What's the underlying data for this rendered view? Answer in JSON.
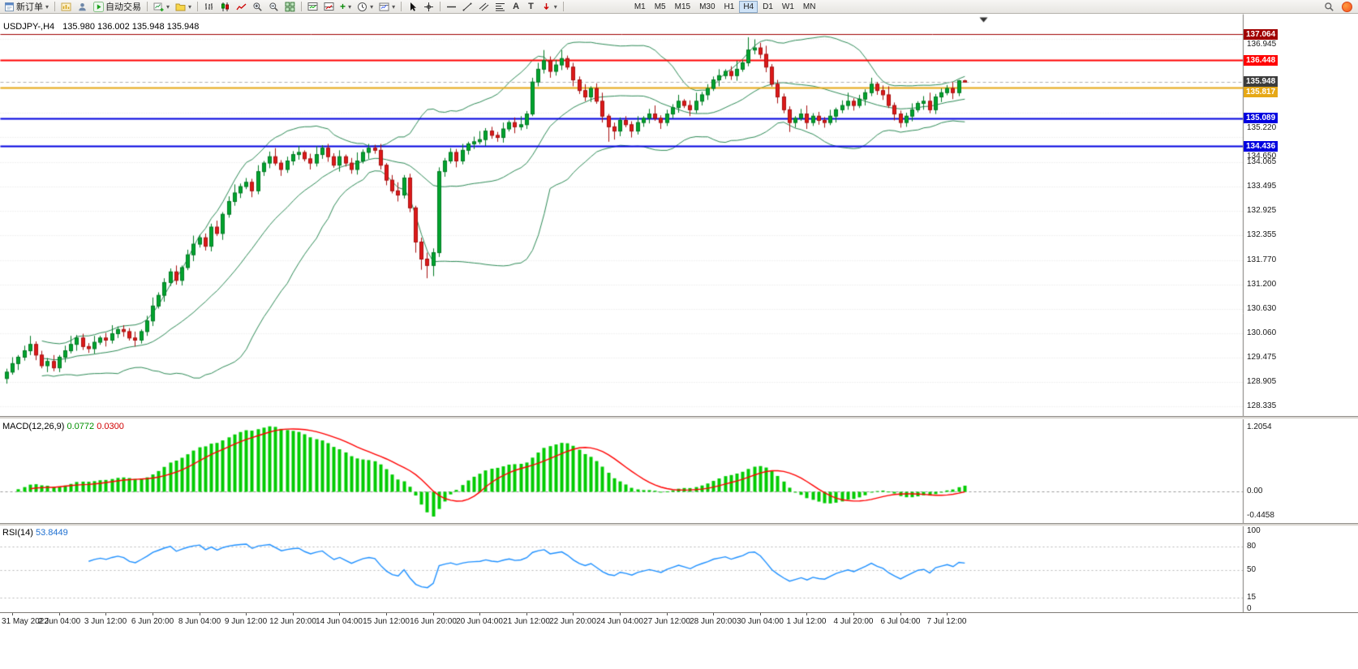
{
  "toolbar": {
    "new_order_label": "新订单",
    "auto_trading_label": "自动交易",
    "text_tool": "A",
    "label_tool": "T",
    "timeframes": [
      "M1",
      "M5",
      "M15",
      "M30",
      "H1",
      "H4",
      "D1",
      "W1",
      "MN"
    ],
    "active_timeframe": "H4"
  },
  "chart_header": {
    "symbol_period": "USDJPY-,H4",
    "ohlc": "135.980 136.002 135.948 135.948"
  },
  "price_axis": {
    "labels": [
      136.945,
      135.22,
      134.65,
      134.065,
      133.495,
      132.925,
      132.355,
      131.77,
      131.2,
      130.63,
      130.06,
      129.475,
      128.905,
      128.335
    ],
    "tags": [
      {
        "text": "137.064",
        "price": 137.064,
        "bg": "#a00000"
      },
      {
        "text": "136.448",
        "price": 136.448,
        "bg": "#ff0000"
      },
      {
        "text": "135.948",
        "price": 135.948,
        "bg": "#3c3c3c"
      },
      {
        "text": "135.817",
        "price": 135.817,
        "bg": "#e6a817"
      },
      {
        "text": "135.089",
        "price": 135.089,
        "bg": "#0000e0"
      },
      {
        "text": "134.436",
        "price": 134.436,
        "bg": "#0000e0"
      }
    ]
  },
  "chart_data": {
    "type": "candlestick",
    "symbol": "USDJPY-",
    "timeframe": "H4",
    "ylim": [
      128.15,
      137.35
    ],
    "colors": {
      "up": "#00a32e",
      "up_dark": "#007a22",
      "down": "#dd1a1a",
      "down_dark": "#a80f0f"
    },
    "bollinger": {
      "period": 20,
      "deviation": 2,
      "color": "#2e8b57"
    },
    "hlines": [
      {
        "price": 137.064,
        "color": "#a00000",
        "width": 1
      },
      {
        "price": 136.448,
        "color": "#ff0000",
        "width": 2
      },
      {
        "price": 135.817,
        "color": "#e6a817",
        "width": 2
      },
      {
        "price": 135.089,
        "color": "#0000e0",
        "width": 2
      },
      {
        "price": 134.436,
        "color": "#0000e0",
        "width": 2
      }
    ],
    "bid_line": {
      "price": 135.948,
      "color": "#b0b0b0"
    },
    "x_label_first_candle": 1,
    "x_label_step": 8,
    "x_labels": [
      "31 May 2022",
      "2 Jun 04:00",
      "3 Jun 12:00",
      "6 Jun 20:00",
      "8 Jun 04:00",
      "9 Jun 12:00",
      "12 Jun 20:00",
      "14 Jun 04:00",
      "15 Jun 12:00",
      "16 Jun 20:00",
      "20 Jun 04:00",
      "21 Jun 12:00",
      "22 Jun 20:00",
      "24 Jun 04:00",
      "27 Jun 12:00",
      "28 Jun 20:00",
      "30 Jun 04:00",
      "1 Jul 12:00",
      "4 Jul 20:00",
      "6 Jul 04:00",
      "7 Jul 12:00"
    ],
    "indicators": {
      "macd": {
        "label": "MACD(12,26,9)",
        "value_main": "0.0772",
        "value_signal": "0.0300",
        "axis_labels": [
          "1.2054",
          "0.00",
          "-0.4458"
        ],
        "histogram_color": "#00cc00",
        "signal_color": "#ff0000"
      },
      "rsi": {
        "label": "RSI(14)",
        "value": "53.8449",
        "axis_labels": [
          "100",
          "80",
          "50",
          "15",
          "0"
        ],
        "axis_values": [
          100,
          80,
          50,
          15,
          0
        ],
        "levels": [
          80,
          50,
          15
        ],
        "line_color": "#1e90ff"
      }
    },
    "candles": [
      [
        129.0,
        129.23,
        128.88,
        129.15
      ],
      [
        129.15,
        129.5,
        129.09,
        129.35
      ],
      [
        129.35,
        129.55,
        129.2,
        129.5
      ],
      [
        129.5,
        129.77,
        129.42,
        129.65
      ],
      [
        129.65,
        130.0,
        129.55,
        129.8
      ],
      [
        129.8,
        129.87,
        129.43,
        129.55
      ],
      [
        129.55,
        129.65,
        129.24,
        129.3
      ],
      [
        129.3,
        129.48,
        129.15,
        129.4
      ],
      [
        129.4,
        129.55,
        129.17,
        129.25
      ],
      [
        129.25,
        129.55,
        129.15,
        129.5
      ],
      [
        129.5,
        129.77,
        129.38,
        129.65
      ],
      [
        129.65,
        130.0,
        129.59,
        129.8
      ],
      [
        129.8,
        130.02,
        129.65,
        129.95
      ],
      [
        129.95,
        130.05,
        129.67,
        129.75
      ],
      [
        129.75,
        129.83,
        129.6,
        129.7
      ],
      [
        129.7,
        130.0,
        129.58,
        129.85
      ],
      [
        129.85,
        130.0,
        129.79,
        129.95
      ],
      [
        129.95,
        130.07,
        129.75,
        129.9
      ],
      [
        129.9,
        130.25,
        129.82,
        130.05
      ],
      [
        130.05,
        130.22,
        129.95,
        130.15
      ],
      [
        130.15,
        130.25,
        129.98,
        130.1
      ],
      [
        130.1,
        130.18,
        129.89,
        129.95
      ],
      [
        129.95,
        130.1,
        129.75,
        129.9
      ],
      [
        129.9,
        130.15,
        129.82,
        130.1
      ],
      [
        130.1,
        130.47,
        130.0,
        130.35
      ],
      [
        130.35,
        130.9,
        130.23,
        130.7
      ],
      [
        130.7,
        131.02,
        130.64,
        130.95
      ],
      [
        130.95,
        131.35,
        130.8,
        131.25
      ],
      [
        131.25,
        131.58,
        131.17,
        131.5
      ],
      [
        131.5,
        131.65,
        131.2,
        131.3
      ],
      [
        131.3,
        131.65,
        131.18,
        131.6
      ],
      [
        131.6,
        132.02,
        131.54,
        131.9
      ],
      [
        131.9,
        132.35,
        131.75,
        132.15
      ],
      [
        132.15,
        132.37,
        132.07,
        132.3
      ],
      [
        132.3,
        132.4,
        132.0,
        132.1
      ],
      [
        132.1,
        132.63,
        131.98,
        132.55
      ],
      [
        132.55,
        132.7,
        132.34,
        132.4
      ],
      [
        132.4,
        132.9,
        132.25,
        132.85
      ],
      [
        132.85,
        133.27,
        132.77,
        133.15
      ],
      [
        133.15,
        133.55,
        133.05,
        133.35
      ],
      [
        133.35,
        133.57,
        133.23,
        133.5
      ],
      [
        133.5,
        133.7,
        133.44,
        133.6
      ],
      [
        133.6,
        133.68,
        133.25,
        133.4
      ],
      [
        133.4,
        134.0,
        133.32,
        133.85
      ],
      [
        133.85,
        134.1,
        133.75,
        134.05
      ],
      [
        134.05,
        134.32,
        133.93,
        134.2
      ],
      [
        134.2,
        134.4,
        133.99,
        134.05
      ],
      [
        134.05,
        134.12,
        133.75,
        133.9
      ],
      [
        133.9,
        134.2,
        133.82,
        134.1
      ],
      [
        134.1,
        134.33,
        134.0,
        134.25
      ],
      [
        134.25,
        134.45,
        134.13,
        134.3
      ],
      [
        134.3,
        134.35,
        134.09,
        134.15
      ],
      [
        134.15,
        134.27,
        133.9,
        134.05
      ],
      [
        134.05,
        134.45,
        133.97,
        134.25
      ],
      [
        134.25,
        134.47,
        134.15,
        134.4
      ],
      [
        134.4,
        134.5,
        134.08,
        134.2
      ],
      [
        134.2,
        134.28,
        133.94,
        134.0
      ],
      [
        134.0,
        134.35,
        133.85,
        134.2
      ],
      [
        134.2,
        134.25,
        133.97,
        134.05
      ],
      [
        134.05,
        134.17,
        133.8,
        133.9
      ],
      [
        133.9,
        134.3,
        133.78,
        134.1
      ],
      [
        134.1,
        134.37,
        134.04,
        134.3
      ],
      [
        134.3,
        134.5,
        134.15,
        134.4
      ],
      [
        134.4,
        134.48,
        134.27,
        134.35
      ],
      [
        134.35,
        134.5,
        133.9,
        134.0
      ],
      [
        134.0,
        134.05,
        133.53,
        133.65
      ],
      [
        133.65,
        133.77,
        133.34,
        133.4
      ],
      [
        133.4,
        133.6,
        133.15,
        133.3
      ],
      [
        133.3,
        133.77,
        133.22,
        133.7
      ],
      [
        133.7,
        133.8,
        132.9,
        133.0
      ],
      [
        133.0,
        133.05,
        131.95,
        132.2
      ],
      [
        132.2,
        132.3,
        131.55,
        131.8
      ],
      [
        131.8,
        131.95,
        131.35,
        131.65
      ],
      [
        131.65,
        132.05,
        131.4,
        131.95
      ],
      [
        131.95,
        133.95,
        131.85,
        133.85
      ],
      [
        133.85,
        134.17,
        133.73,
        134.1
      ],
      [
        134.1,
        134.4,
        134.04,
        134.3
      ],
      [
        134.3,
        134.38,
        133.95,
        134.1
      ],
      [
        134.1,
        134.5,
        134.02,
        134.35
      ],
      [
        134.35,
        134.55,
        134.25,
        134.5
      ],
      [
        134.5,
        134.67,
        134.38,
        134.55
      ],
      [
        134.55,
        134.8,
        134.49,
        134.6
      ],
      [
        134.6,
        134.87,
        134.45,
        134.8
      ],
      [
        134.8,
        134.9,
        134.62,
        134.7
      ],
      [
        134.7,
        134.78,
        134.55,
        134.65
      ],
      [
        134.65,
        135.0,
        134.53,
        134.85
      ],
      [
        134.85,
        135.05,
        134.79,
        135.0
      ],
      [
        135.0,
        135.12,
        134.75,
        134.9
      ],
      [
        134.9,
        135.15,
        134.82,
        134.95
      ],
      [
        134.95,
        135.27,
        134.85,
        135.2
      ],
      [
        135.2,
        136.05,
        135.15,
        135.95
      ],
      [
        135.95,
        136.4,
        135.85,
        136.25
      ],
      [
        136.25,
        136.7,
        136.15,
        136.45
      ],
      [
        136.45,
        136.55,
        136.05,
        136.2
      ],
      [
        136.2,
        136.47,
        136.1,
        136.35
      ],
      [
        136.35,
        136.7,
        136.23,
        136.5
      ],
      [
        136.5,
        136.57,
        136.24,
        136.3
      ],
      [
        136.3,
        136.4,
        135.85,
        136.0
      ],
      [
        136.0,
        136.08,
        135.67,
        135.75
      ],
      [
        135.75,
        135.9,
        135.5,
        135.6
      ],
      [
        135.6,
        135.85,
        135.48,
        135.8
      ],
      [
        135.8,
        135.92,
        135.44,
        135.5
      ],
      [
        135.5,
        135.7,
        135.0,
        135.15
      ],
      [
        135.15,
        135.2,
        134.55,
        134.9
      ],
      [
        134.9,
        135.0,
        134.6,
        134.8
      ],
      [
        134.8,
        135.12,
        134.68,
        135.05
      ],
      [
        135.05,
        135.15,
        134.89,
        134.95
      ],
      [
        134.95,
        135.03,
        134.65,
        134.8
      ],
      [
        134.8,
        135.15,
        134.72,
        135.0
      ],
      [
        135.0,
        135.15,
        134.9,
        135.1
      ],
      [
        135.1,
        135.32,
        134.98,
        135.2
      ],
      [
        135.2,
        135.4,
        135.04,
        135.1
      ],
      [
        135.1,
        135.17,
        134.85,
        135.0
      ],
      [
        135.0,
        135.3,
        134.92,
        135.2
      ],
      [
        135.2,
        135.43,
        135.1,
        135.35
      ],
      [
        135.35,
        135.65,
        135.23,
        135.5
      ],
      [
        135.5,
        135.55,
        135.34,
        135.4
      ],
      [
        135.4,
        135.52,
        135.15,
        135.3
      ],
      [
        135.3,
        135.7,
        135.22,
        135.5
      ],
      [
        135.5,
        135.72,
        135.4,
        135.65
      ],
      [
        135.65,
        135.9,
        135.53,
        135.8
      ],
      [
        135.8,
        136.08,
        135.74,
        136.0
      ],
      [
        136.0,
        136.25,
        135.85,
        136.1
      ],
      [
        136.1,
        136.25,
        136.02,
        136.2
      ],
      [
        136.2,
        136.32,
        136.0,
        136.1
      ],
      [
        136.1,
        136.45,
        135.98,
        136.25
      ],
      [
        136.25,
        136.47,
        136.19,
        136.4
      ],
      [
        136.4,
        137.0,
        136.32,
        136.7
      ],
      [
        136.7,
        136.95,
        136.6,
        136.75
      ],
      [
        136.75,
        136.87,
        136.5,
        136.6
      ],
      [
        136.6,
        136.8,
        136.18,
        136.3
      ],
      [
        136.3,
        136.37,
        135.84,
        135.9
      ],
      [
        135.9,
        136.0,
        135.45,
        135.6
      ],
      [
        135.6,
        135.68,
        135.22,
        135.3
      ],
      [
        135.3,
        135.38,
        134.78,
        135.0
      ],
      [
        135.0,
        135.15,
        134.88,
        135.1
      ],
      [
        135.1,
        135.32,
        135.04,
        135.2
      ],
      [
        135.2,
        135.4,
        134.85,
        135.0
      ],
      [
        135.0,
        135.22,
        134.92,
        135.15
      ],
      [
        135.15,
        135.25,
        134.95,
        135.05
      ],
      [
        135.05,
        135.13,
        134.88,
        135.0
      ],
      [
        135.0,
        135.3,
        134.94,
        135.15
      ],
      [
        135.15,
        135.35,
        135.0,
        135.3
      ],
      [
        135.3,
        135.52,
        135.22,
        135.4
      ],
      [
        135.4,
        135.7,
        135.3,
        135.5
      ],
      [
        135.5,
        135.57,
        135.28,
        135.4
      ],
      [
        135.4,
        135.65,
        135.34,
        135.55
      ],
      [
        135.55,
        135.78,
        135.4,
        135.7
      ],
      [
        135.7,
        136.05,
        135.62,
        135.9
      ],
      [
        135.9,
        135.95,
        135.65,
        135.75
      ],
      [
        135.75,
        135.87,
        135.53,
        135.65
      ],
      [
        135.65,
        135.85,
        135.34,
        135.4
      ],
      [
        135.4,
        135.47,
        135.05,
        135.2
      ],
      [
        135.2,
        135.28,
        134.88,
        135.0
      ],
      [
        135.0,
        135.23,
        134.9,
        135.15
      ],
      [
        135.15,
        135.45,
        135.03,
        135.3
      ],
      [
        135.3,
        135.5,
        135.24,
        135.45
      ],
      [
        135.45,
        135.62,
        135.3,
        135.5
      ],
      [
        135.5,
        135.7,
        135.22,
        135.3
      ],
      [
        135.3,
        135.67,
        135.2,
        135.6
      ],
      [
        135.6,
        135.8,
        135.48,
        135.7
      ],
      [
        135.7,
        135.88,
        135.64,
        135.8
      ],
      [
        135.8,
        135.95,
        135.55,
        135.7
      ],
      [
        135.7,
        136.0,
        135.62,
        135.98
      ],
      [
        135.98,
        136.002,
        135.948,
        135.948
      ]
    ]
  }
}
